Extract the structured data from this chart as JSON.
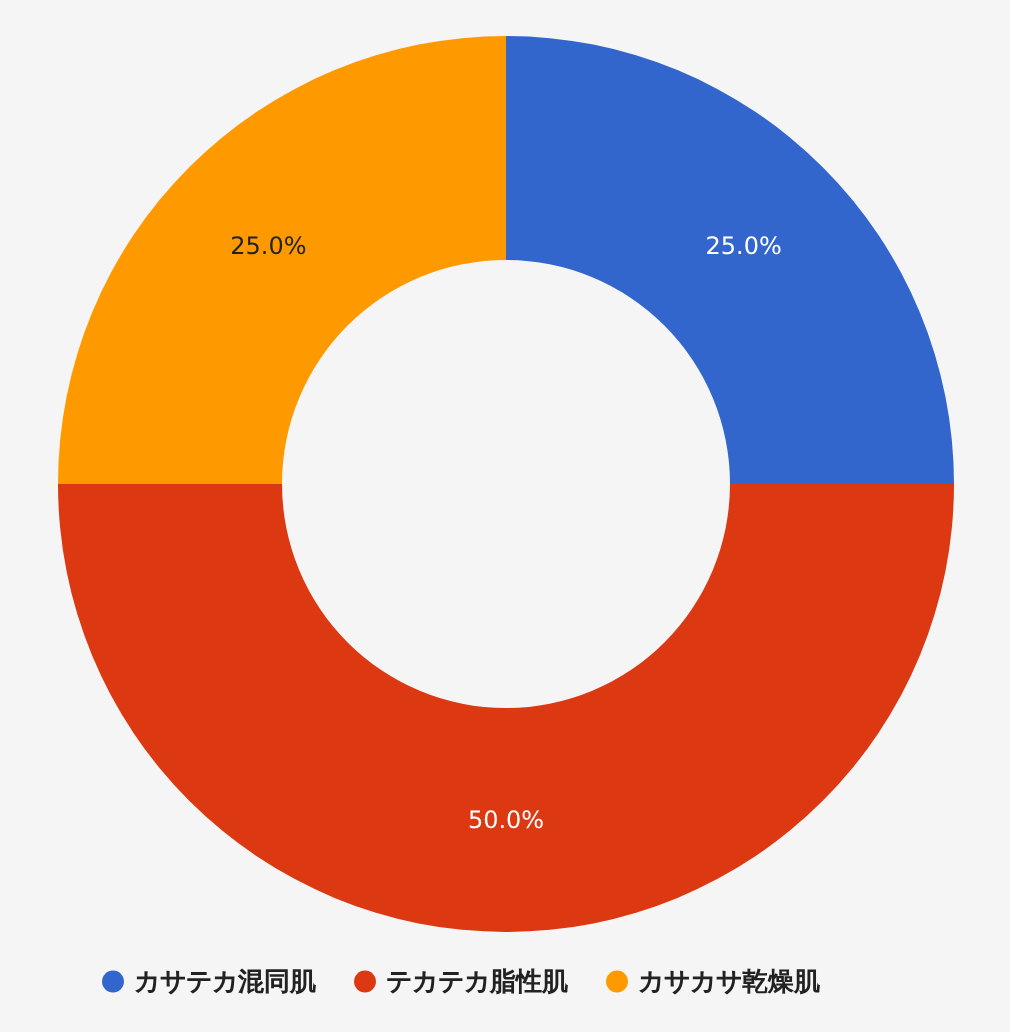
{
  "chart_data": {
    "type": "donut",
    "categories": [
      "カサテカ混同肌",
      "テカテカ脂性肌",
      "カサカサ乾燥肌"
    ],
    "values": [
      25,
      50,
      25
    ],
    "colors": [
      "#3366cc",
      "#dc3912",
      "#ff9900"
    ],
    "value_labels": [
      "25.0%",
      "50.0%",
      "25.0%"
    ],
    "legend": "bottom"
  }
}
